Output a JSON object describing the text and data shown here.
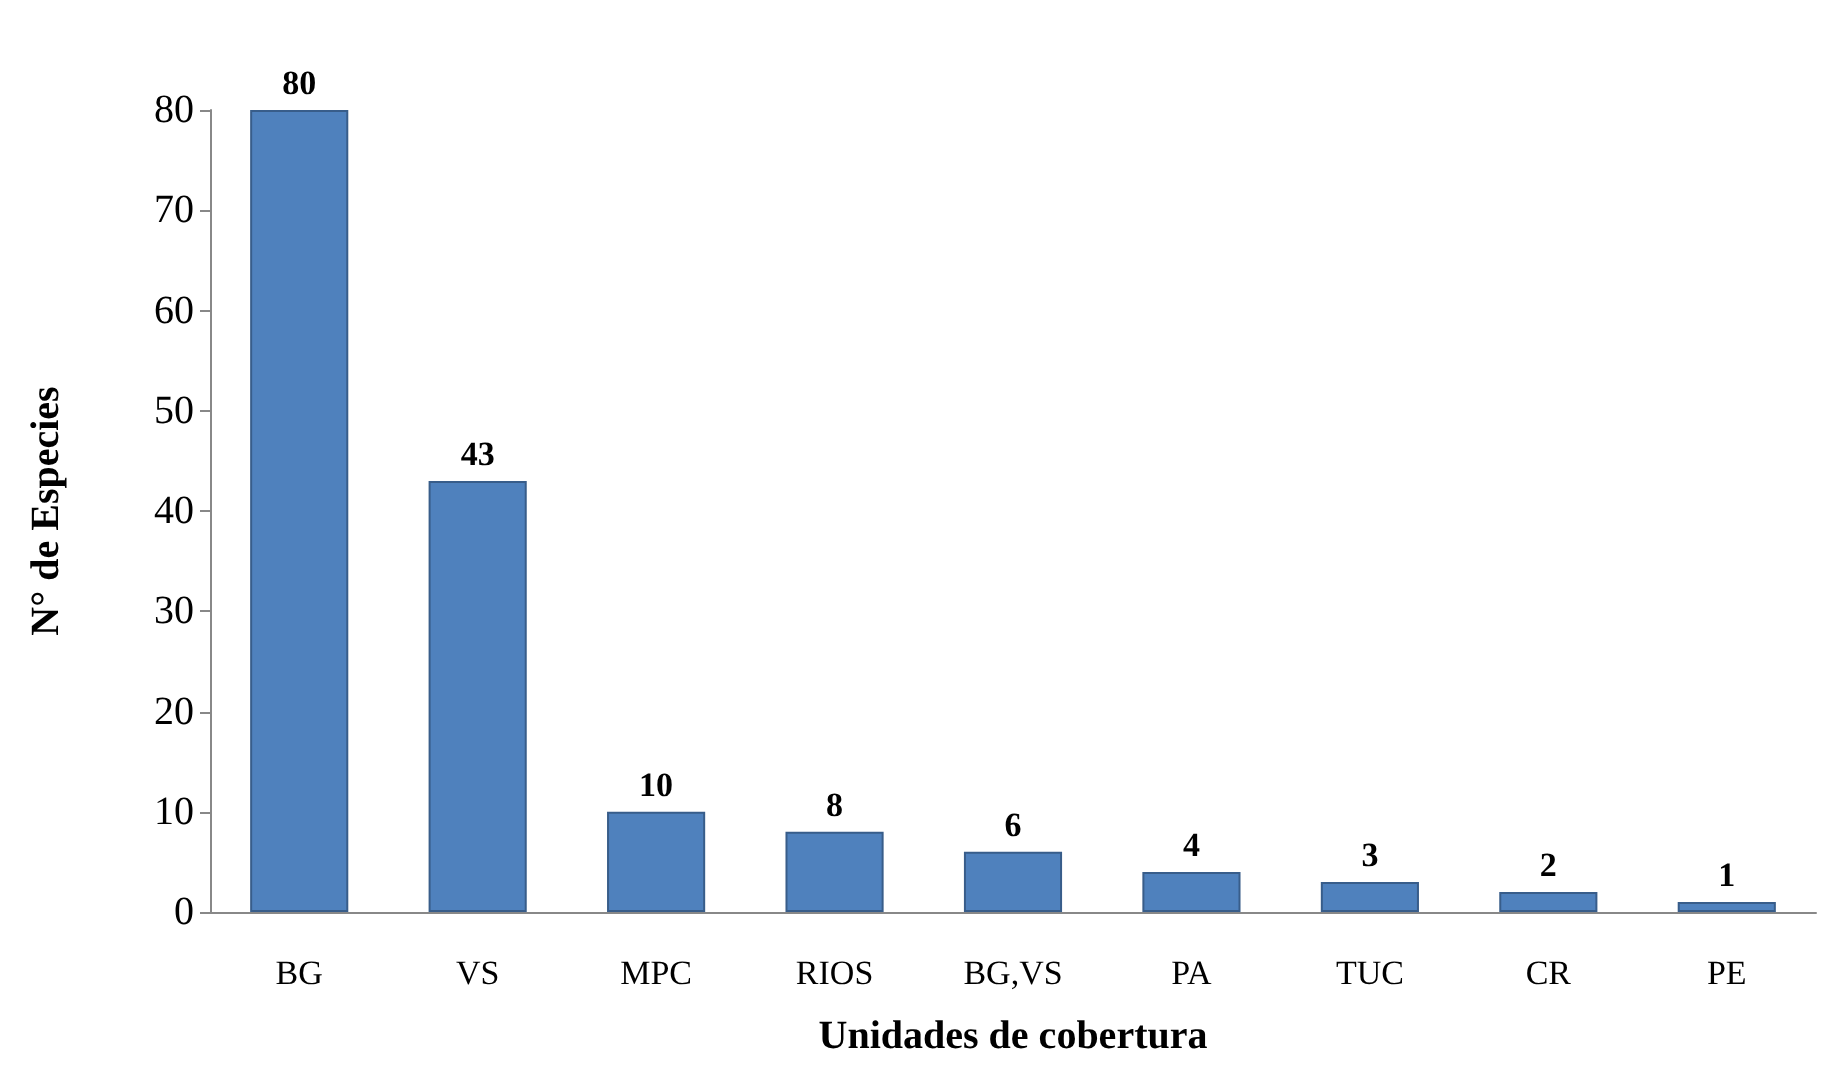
{
  "chart_data": {
    "type": "bar",
    "xlabel": "Unidades de cobertura",
    "ylabel": "N° de Especies",
    "categories": [
      "BG",
      "VS",
      "MPC",
      "RIOS",
      "BG,VS",
      "PA",
      "TUC",
      "CR",
      "PE"
    ],
    "values": [
      80,
      43,
      10,
      8,
      6,
      4,
      3,
      2,
      1
    ],
    "color": "#4f81bd",
    "ylim": [
      0,
      80
    ],
    "yticks": [
      0,
      10,
      20,
      30,
      40,
      50,
      60,
      70,
      80
    ],
    "data_labels": true
  }
}
